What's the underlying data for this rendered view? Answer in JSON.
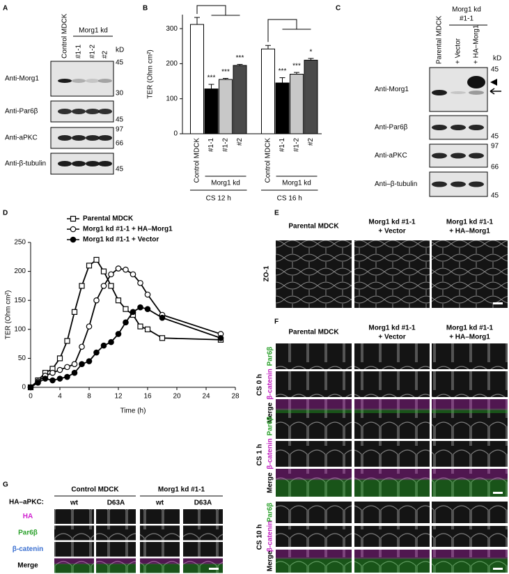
{
  "panel_a": {
    "letter": "A",
    "columns": [
      "Control MDCK",
      "#1-1",
      "#1-2",
      "#2"
    ],
    "group": "Morg1 kd",
    "unit": "kD",
    "rows": [
      "Anti-Morg1",
      "Anti-Par6β",
      "Anti-aPKC",
      "Anti-β-tubulin"
    ],
    "markers": [
      "45",
      "30",
      "45",
      "97",
      "66",
      "45"
    ]
  },
  "chart_data": [
    {
      "panel": "B",
      "type": "bar",
      "y_label": "TER (Ohm cm²)",
      "categories": [
        "Control MDCK",
        "#1-1",
        "#1-2",
        "#2",
        "Control MDCK",
        "#1-1",
        "#1-2",
        "#2"
      ],
      "values": [
        312,
        128,
        155,
        195,
        242,
        145,
        170,
        210
      ],
      "errors": [
        20,
        13,
        3,
        3,
        10,
        15,
        5,
        5
      ],
      "colors": [
        "#ffffff",
        "#000000",
        "#c8c8c8",
        "#4a4a4a",
        "#ffffff",
        "#000000",
        "#c8c8c8",
        "#4a4a4a"
      ],
      "significance": [
        null,
        "***",
        "***",
        "***",
        null,
        "***",
        "***",
        "*"
      ],
      "subgroups": [
        "Morg1 kd",
        "Morg1 kd"
      ],
      "groups": [
        "CS 12 h",
        "CS 16 h"
      ],
      "ylim": [
        0,
        340
      ],
      "yticks": [
        0,
        100,
        200,
        300
      ]
    },
    {
      "panel": "D",
      "type": "line",
      "x_label": "Time (h)",
      "y_label": "TER (Ohm cm²)",
      "x": [
        0,
        1,
        2,
        3,
        4,
        5,
        6,
        7,
        8,
        9,
        10,
        11,
        12,
        13,
        14,
        15,
        16,
        18,
        26
      ],
      "series": [
        {
          "name": "Parental MDCK",
          "marker": "square",
          "color": "#000000",
          "values": [
            0,
            12,
            25,
            32,
            50,
            80,
            130,
            175,
            210,
            220,
            200,
            175,
            150,
            135,
            125,
            105,
            100,
            85,
            82
          ]
        },
        {
          "name": "Morg1 kd #1-1 + HA–Morg1",
          "marker": "open-circle",
          "color": "#000000",
          "values": [
            0,
            10,
            20,
            25,
            30,
            35,
            40,
            70,
            105,
            150,
            175,
            195,
            205,
            203,
            195,
            180,
            160,
            125,
            92
          ]
        },
        {
          "name": "Morg1 kd #1-1 + Vector",
          "marker": "filled-circle",
          "color": "#000000",
          "values": [
            0,
            8,
            15,
            12,
            15,
            18,
            25,
            40,
            45,
            60,
            72,
            78,
            92,
            112,
            130,
            138,
            135,
            120,
            85
          ]
        }
      ],
      "xlim": [
        0,
        28
      ],
      "xticks": [
        0,
        4,
        8,
        12,
        16,
        20,
        24,
        28
      ],
      "ylim": [
        0,
        250
      ],
      "yticks": [
        0,
        50,
        100,
        150,
        200,
        250
      ]
    }
  ],
  "panel_c": {
    "letter": "C",
    "columns": [
      "Parental MDCK",
      "+ Vector",
      "+ HA–Morg1"
    ],
    "group": [
      "Morg1 kd",
      "#1-1"
    ],
    "unit": "kD",
    "rows": [
      "Anti-Morg1",
      "Anti-Par6β",
      "Anti-aPKC",
      "Anti–β-tubulin"
    ],
    "markers": [
      "45",
      "45",
      "97",
      "66",
      "45"
    ]
  },
  "panel_e": {
    "letter": "E",
    "columns": [
      [
        "Parental MDCK"
      ],
      [
        "Morg1 kd #1-1",
        "+ Vector"
      ],
      [
        "Morg1 kd #1-1",
        "+ HA–Morg1"
      ]
    ],
    "row": "ZO-1"
  },
  "panel_f": {
    "letter": "F",
    "columns": [
      [
        "Parental MDCK"
      ],
      [
        "Morg1 kd #1-1",
        "+ Vector"
      ],
      [
        "Morg1 kd #1-1",
        "+ HA–Morg1"
      ]
    ],
    "groups": [
      "CS 0 h",
      "CS 1 h",
      "CS 10 h"
    ],
    "rows": [
      "Par6β",
      "β-catenin",
      "Merge"
    ]
  },
  "panel_g": {
    "letter": "G",
    "groups": [
      "Control MDCK",
      "Morg1 kd #1-1"
    ],
    "construct": "HA–aPKC:",
    "columns": [
      "wt",
      "D63A",
      "wt",
      "D63A"
    ],
    "rows": [
      "HA",
      "Par6β",
      "β-catenin",
      "Merge"
    ]
  }
}
